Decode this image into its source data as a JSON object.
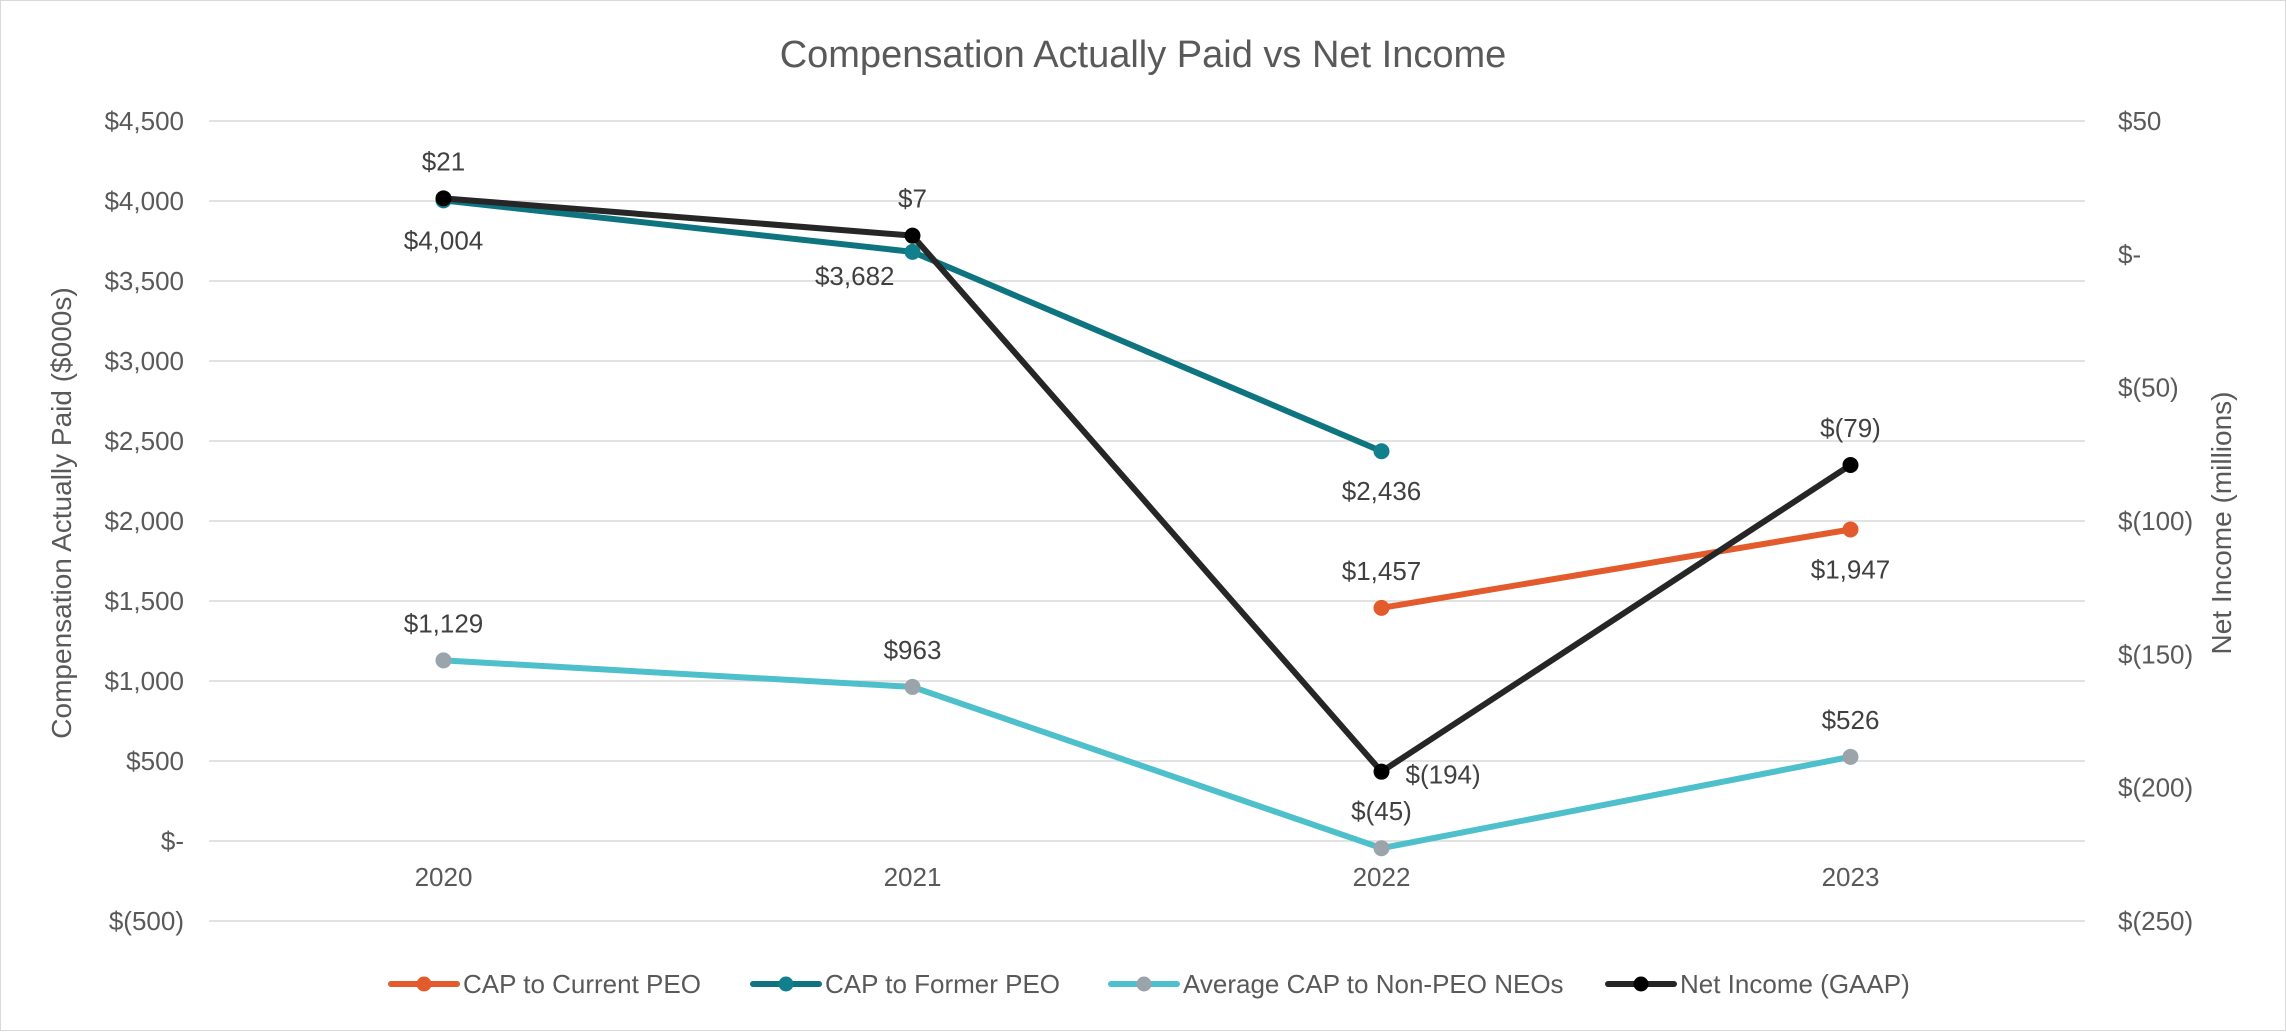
{
  "chart_data": {
    "type": "line",
    "title": "Compensation Actually Paid vs Net Income",
    "categories": [
      "2020",
      "2021",
      "2022",
      "2023"
    ],
    "ylabel": "Compensation Actually Paid ($000s)",
    "y2label": "Net Income (millions)",
    "ylim": [
      -500,
      4500
    ],
    "y2lim": [
      -250,
      50
    ],
    "yticks": [
      4500,
      4000,
      3500,
      3000,
      2500,
      2000,
      1500,
      1000,
      500,
      0,
      -500
    ],
    "yticklabels": [
      "$4,500",
      "$4,000",
      "$3,500",
      "$3,000",
      "$2,500",
      "$2,000",
      "$1,500",
      "$1,000",
      "$500",
      "$-",
      "$(500)"
    ],
    "y2ticks": [
      50,
      0,
      -50,
      -100,
      -150,
      -200,
      -250
    ],
    "y2ticklabels": [
      "$50",
      "$-",
      "$(50)",
      "$(100)",
      "$(150)",
      "$(200)",
      "$(250)"
    ],
    "grid": true,
    "legend_position": "bottom",
    "series": [
      {
        "name": "CAP to Current PEO",
        "axis": "left",
        "color": "#e35b2c",
        "marker_color": "#e35b2c",
        "values": [
          null,
          null,
          1457,
          1947
        ],
        "labels": [
          null,
          null,
          "$1,457",
          "$1,947"
        ],
        "label_pos": [
          null,
          null,
          "above",
          "below"
        ]
      },
      {
        "name": "CAP to Former PEO",
        "axis": "left",
        "color": "#0e7480",
        "marker_color": "#12808c",
        "values": [
          4004,
          3682,
          2436,
          null
        ],
        "labels": [
          "$4,004",
          "$3,682",
          "$2,436",
          null
        ],
        "label_pos": [
          "below",
          "below-left",
          "below",
          null
        ]
      },
      {
        "name": "Average CAP to Non-PEO NEOs",
        "axis": "left",
        "color": "#4ec0cb",
        "marker_color": "#9aa4aa",
        "values": [
          1129,
          963,
          -45,
          526
        ],
        "labels": [
          "$1,129",
          "$963",
          "$(45)",
          "$526"
        ],
        "label_pos": [
          "above",
          "above",
          "above",
          "above"
        ]
      },
      {
        "name": "Net Income (GAAP)",
        "axis": "right",
        "color": "#262626",
        "marker_color": "#000000",
        "values": [
          21,
          7,
          -194,
          -79
        ],
        "labels": [
          "$21",
          "$7",
          "$(194)",
          "$(79)"
        ],
        "label_pos": [
          "above",
          "above",
          "right",
          "above"
        ]
      }
    ]
  }
}
